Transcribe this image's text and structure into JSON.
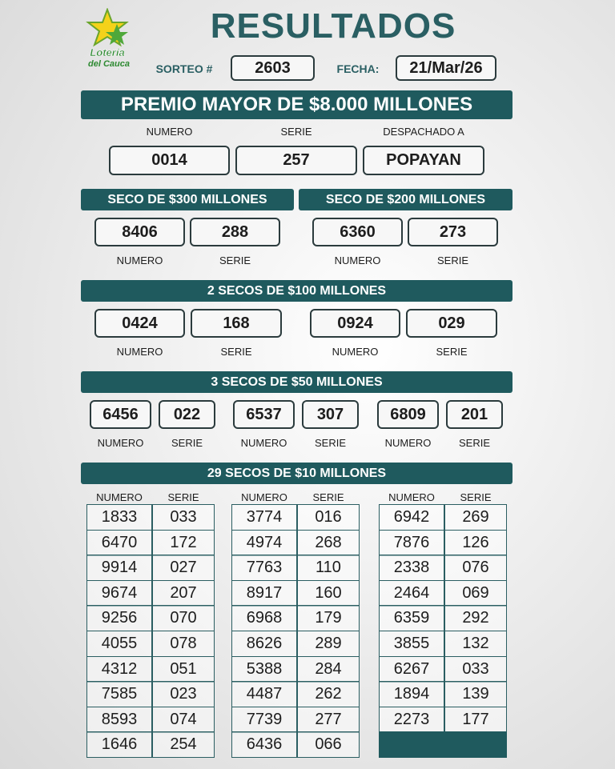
{
  "logo": {
    "line1": "Lotería",
    "line2": "del Cauca"
  },
  "title": "RESULTADOS",
  "sorteo_label": "SORTEO #",
  "sorteo": "2603",
  "fecha_label": "FECHA:",
  "fecha": "21/Mar/26",
  "premio_mayor": {
    "title": "PREMIO MAYOR DE $8.000 MILLONES",
    "labels": [
      "NUMERO",
      "SERIE",
      "DESPACHADO A"
    ],
    "values": [
      "0014",
      "257",
      "POPAYAN"
    ]
  },
  "numero_label": "NUMERO",
  "serie_label": "SERIE",
  "seco_300": {
    "title": "SECO DE $300 MILLONES",
    "prizes": [
      {
        "numero": "8406",
        "serie": "288"
      }
    ]
  },
  "seco_200": {
    "title": "SECO DE $200 MILLONES",
    "prizes": [
      {
        "numero": "6360",
        "serie": "273"
      }
    ]
  },
  "secos_100": {
    "title": "2 SECOS DE $100 MILLONES",
    "prizes": [
      {
        "numero": "0424",
        "serie": "168"
      },
      {
        "numero": "0924",
        "serie": "029"
      }
    ]
  },
  "secos_50": {
    "title": "3 SECOS DE $50 MILLONES",
    "prizes": [
      {
        "numero": "6456",
        "serie": "022"
      },
      {
        "numero": "6537",
        "serie": "307"
      },
      {
        "numero": "6809",
        "serie": "201"
      }
    ]
  },
  "secos_10": {
    "title": "29 SECOS DE $10 MILLONES",
    "columns": [
      [
        [
          "1833",
          "033"
        ],
        [
          "6470",
          "172"
        ],
        [
          "9914",
          "027"
        ],
        [
          "9674",
          "207"
        ],
        [
          "9256",
          "070"
        ],
        [
          "4055",
          "078"
        ],
        [
          "4312",
          "051"
        ],
        [
          "7585",
          "023"
        ],
        [
          "8593",
          "074"
        ],
        [
          "1646",
          "254"
        ]
      ],
      [
        [
          "3774",
          "016"
        ],
        [
          "4974",
          "268"
        ],
        [
          "7763",
          "110"
        ],
        [
          "8917",
          "160"
        ],
        [
          "6968",
          "179"
        ],
        [
          "8626",
          "289"
        ],
        [
          "5388",
          "284"
        ],
        [
          "4487",
          "262"
        ],
        [
          "7739",
          "277"
        ],
        [
          "6436",
          "066"
        ]
      ],
      [
        [
          "6942",
          "269"
        ],
        [
          "7876",
          "126"
        ],
        [
          "2338",
          "076"
        ],
        [
          "2464",
          "069"
        ],
        [
          "6359",
          "292"
        ],
        [
          "3855",
          "132"
        ],
        [
          "6267",
          "033"
        ],
        [
          "1894",
          "139"
        ],
        [
          "2273",
          "177"
        ]
      ]
    ]
  }
}
